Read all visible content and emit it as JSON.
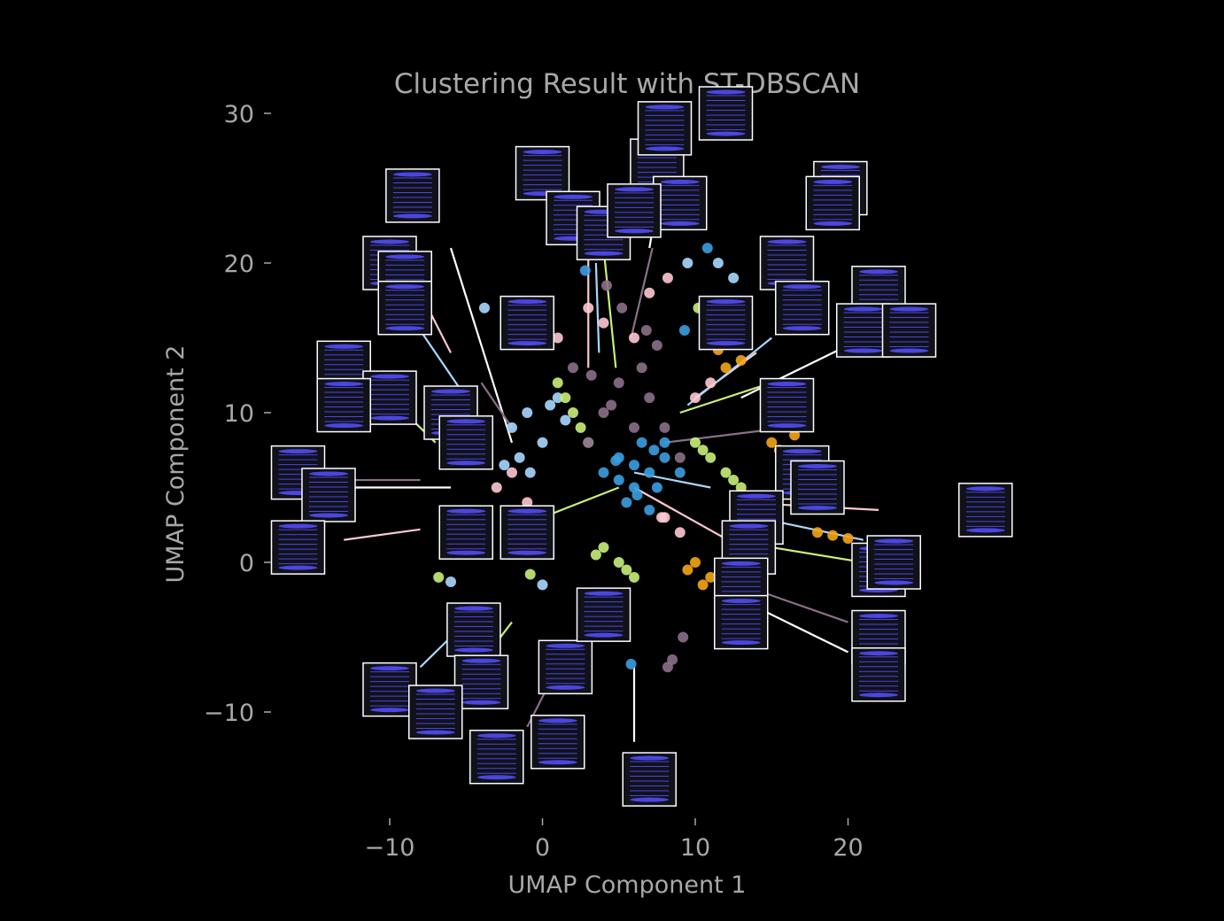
{
  "chart_data": {
    "type": "scatter",
    "title": "Clustering Result with ST-DBSCAN",
    "xlabel": "UMAP Component 1",
    "ylabel": "UMAP Component 2",
    "xlim": [
      -10.5,
      24.5
    ],
    "ylim": [
      -17,
      31
    ],
    "xticks": [
      -10,
      0,
      10,
      20
    ],
    "yticks": [
      -10,
      0,
      10,
      20,
      30
    ],
    "xtick_labels": [
      "−10",
      "0",
      "10",
      "20"
    ],
    "ytick_labels": [
      "−10",
      "0",
      "10",
      "20",
      "30"
    ],
    "grid": false,
    "legend": "none",
    "colors": {
      "background": "#000000",
      "text": "#a8a8a8",
      "thumb_border": "#ffffff",
      "thumb_line": "#4a46e0",
      "thumb_bg": "#11111a"
    },
    "series": [
      {
        "color": "#3a9ee0",
        "x": [
          4,
          5,
          6,
          7,
          8,
          9,
          5.5,
          6.5,
          7.5,
          6,
          7,
          5,
          8,
          6.2,
          7.3,
          4.8,
          9.3,
          10.8,
          5.8,
          2.8
        ],
        "y": [
          6,
          7,
          5,
          6,
          7,
          6,
          4,
          8,
          5,
          6.5,
          3.5,
          5.5,
          8,
          4.5,
          7.5,
          6.8,
          15.5,
          21,
          -6.8,
          19.5
        ]
      },
      {
        "color": "#a8d8ff",
        "x": [
          -2,
          -1,
          0,
          1,
          -1.5,
          -2.5,
          0.5,
          -0.8,
          1.5,
          9.5,
          11.5,
          12.5,
          0,
          -6,
          -3.8
        ],
        "y": [
          9,
          10,
          8,
          11,
          7,
          6.5,
          10.5,
          6,
          9.5,
          20,
          20,
          19,
          -1.5,
          -1.3,
          17
        ]
      },
      {
        "color": "#c8f078",
        "x": [
          1,
          2,
          3,
          4,
          5,
          6,
          2.5,
          1.5,
          5.5,
          3.5,
          10,
          11,
          12,
          13,
          10.5,
          12.5,
          13.2,
          10.2,
          -6.8,
          -0.8
        ],
        "y": [
          12,
          10,
          8,
          1,
          0,
          -1,
          9,
          11,
          -0.5,
          0.5,
          8,
          7,
          6,
          5,
          7.5,
          5.5,
          4,
          17,
          -1,
          -0.8
        ]
      },
      {
        "color": "#f5a516",
        "x": [
          12,
          13,
          15,
          16,
          17,
          10,
          11,
          9.5,
          10.5,
          16.5,
          18,
          19,
          20,
          11.5,
          15.5
        ],
        "y": [
          13,
          13.5,
          8,
          7,
          6,
          0,
          -1,
          -0.5,
          -1.5,
          8.5,
          2,
          1.8,
          1.6,
          14.2,
          7.5
        ]
      },
      {
        "color": "#ffc8d2",
        "x": [
          -3,
          -2,
          -1,
          1,
          3,
          4,
          7,
          8,
          9,
          6,
          10,
          11,
          8.2,
          7.8
        ],
        "y": [
          5,
          6,
          4,
          15,
          17,
          16,
          18,
          3,
          2,
          15,
          11,
          12,
          19,
          3
        ]
      },
      {
        "color": "#8a7088",
        "x": [
          4,
          5,
          6,
          7,
          2,
          3,
          8,
          9,
          6.5,
          4.5,
          3.2,
          7.5,
          8.5,
          9.2,
          5.2,
          4.2,
          6.8,
          8.2
        ],
        "y": [
          10,
          12,
          9,
          11,
          13,
          8,
          9,
          7,
          13,
          10.5,
          12.5,
          14.5,
          -6.5,
          -5,
          17,
          18.5,
          15.5,
          -7
        ]
      }
    ],
    "leaders": [
      [
        -6,
        21,
        -2,
        8
      ],
      [
        -8,
        18,
        -6,
        14
      ],
      [
        -9,
        17,
        -5,
        11
      ],
      [
        -10,
        11,
        -7,
        8
      ],
      [
        -14,
        5.5,
        -8,
        5.5
      ],
      [
        -13,
        5,
        -6,
        5
      ],
      [
        -13,
        1.5,
        -8,
        2.2
      ],
      [
        -8,
        -7,
        -5,
        -4
      ],
      [
        -5,
        -8,
        -2,
        -4
      ],
      [
        -1,
        -11,
        1,
        -7
      ],
      [
        6,
        -12,
        6,
        -7
      ],
      [
        3,
        21,
        3,
        13
      ],
      [
        3.5,
        20,
        3.7,
        14
      ],
      [
        4,
        21,
        4.8,
        13
      ],
      [
        7.2,
        21,
        5.8,
        15
      ],
      [
        7,
        21,
        8.5,
        30
      ],
      [
        14,
        14,
        10,
        11
      ],
      [
        15,
        15,
        9.5,
        10.5
      ],
      [
        15,
        12,
        9,
        10
      ],
      [
        16,
        9,
        8,
        8
      ],
      [
        20,
        14.5,
        13,
        11
      ],
      [
        22,
        3.5,
        13,
        4
      ],
      [
        21,
        1.5,
        14,
        3
      ],
      [
        21,
        0,
        15,
        1
      ],
      [
        20,
        -4,
        13,
        -1.5
      ],
      [
        20,
        -6,
        12,
        -2
      ],
      [
        13,
        1,
        6,
        5
      ],
      [
        11,
        5,
        6,
        6
      ],
      [
        0,
        3,
        5,
        5
      ],
      [
        -4,
        12,
        -2,
        9
      ]
    ],
    "thumbnails": [
      [
        -8.5,
        24.5
      ],
      [
        -10,
        20
      ],
      [
        -9,
        19
      ],
      [
        -9,
        17
      ],
      [
        -13,
        13
      ],
      [
        -10,
        11
      ],
      [
        -13,
        10.5
      ],
      [
        -16,
        6
      ],
      [
        -14,
        4.5
      ],
      [
        -16,
        1
      ],
      [
        -6,
        10
      ],
      [
        -5,
        8
      ],
      [
        -5,
        2
      ],
      [
        -1,
        2
      ],
      [
        -1,
        16
      ],
      [
        -4.5,
        -4.5
      ],
      [
        -4,
        -8
      ],
      [
        -10,
        -8.5
      ],
      [
        -7,
        -10
      ],
      [
        -3,
        -13
      ],
      [
        1.5,
        -7
      ],
      [
        1,
        -12
      ],
      [
        4,
        -3.5
      ],
      [
        7,
        -14.5
      ],
      [
        0,
        26
      ],
      [
        2,
        23
      ],
      [
        4,
        22
      ],
      [
        7.5,
        26.5
      ],
      [
        8,
        29
      ],
      [
        12,
        30
      ],
      [
        9,
        24
      ],
      [
        6,
        23.5
      ],
      [
        12,
        16
      ],
      [
        16,
        20
      ],
      [
        17,
        17
      ],
      [
        19.5,
        25
      ],
      [
        19,
        24
      ],
      [
        22,
        18
      ],
      [
        21,
        15.5
      ],
      [
        24,
        15.5
      ],
      [
        16,
        10.5
      ],
      [
        17,
        6
      ],
      [
        18,
        5
      ],
      [
        14,
        3
      ],
      [
        13.5,
        1
      ],
      [
        13,
        -1.5
      ],
      [
        13,
        -4
      ],
      [
        22,
        -0.5
      ],
      [
        23,
        0
      ],
      [
        29,
        3.5
      ],
      [
        22,
        -5
      ],
      [
        22,
        -7.5
      ]
    ]
  }
}
